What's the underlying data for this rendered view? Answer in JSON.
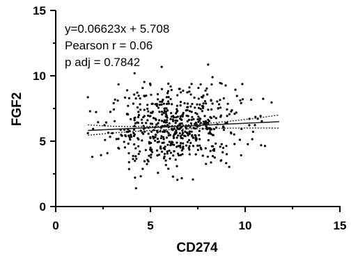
{
  "chart_data": {
    "type": "scatter",
    "xlabel": "CD274",
    "ylabel": "FGF2",
    "xlim": [
      0,
      15
    ],
    "ylim": [
      0,
      15
    ],
    "x_ticks": [
      "0",
      "5",
      "10",
      "15"
    ],
    "y_ticks": [
      "0",
      "5",
      "10",
      "15"
    ],
    "annotations": [
      "y=0.06623x + 5.708",
      "Pearson r = 0.06",
      "p adj = 0.7842"
    ],
    "regression": {
      "slope": 0.06623,
      "intercept": 5.708,
      "x_range": [
        1.7,
        11.8
      ]
    },
    "confidence_band": {
      "upper": [
        [
          1.7,
          6.25
        ],
        [
          5.9,
          6.2
        ],
        [
          11.8,
          7.0
        ]
      ],
      "lower": [
        [
          1.7,
          5.45
        ],
        [
          5.9,
          5.9
        ],
        [
          11.8,
          6.0
        ]
      ]
    },
    "grid": false,
    "legend": "none",
    "point_count": 600
  }
}
